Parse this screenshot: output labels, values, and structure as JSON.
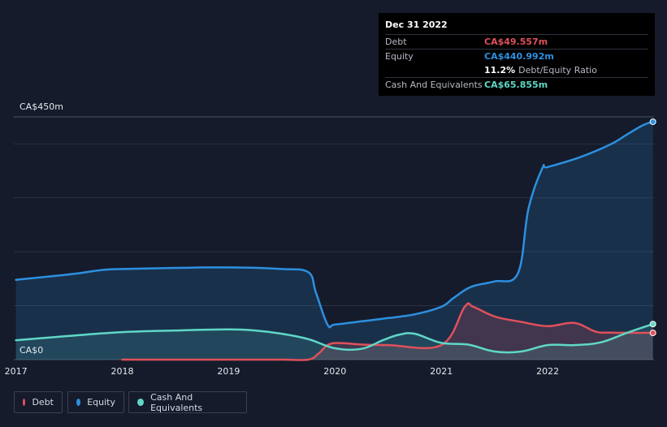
{
  "tooltip": {
    "date": "Dec 31 2022",
    "debt_label": "Debt",
    "debt_value": "CA$49.557m",
    "equity_label": "Equity",
    "equity_value": "CA$440.992m",
    "ratio_value": "11.2%",
    "ratio_label": "Debt/Equity Ratio",
    "cash_label": "Cash And Equivalents",
    "cash_value": "CA$65.855m"
  },
  "legend": {
    "debt": "Debt",
    "equity": "Equity",
    "cash": "Cash And Equivalents"
  },
  "colors": {
    "debt": "#e0505a",
    "equity": "#2c90e0",
    "cash": "#5fd8c6",
    "background": "#151b2b"
  },
  "chart_data": {
    "type": "area",
    "ylabel_top": "CA$450m",
    "ylabel_bottom": "CA$0",
    "ylim": [
      0,
      450
    ],
    "xlim": [
      2016.98,
      2023.0
    ],
    "x_ticks": [
      2017,
      2018,
      2019,
      2020,
      2021,
      2022
    ],
    "x_tick_labels": [
      "2017",
      "2018",
      "2019",
      "2020",
      "2021",
      "2022"
    ],
    "series": [
      {
        "name": "Equity",
        "points": [
          [
            2017.0,
            148
          ],
          [
            2017.5,
            158
          ],
          [
            2017.8,
            166
          ],
          [
            2018.0,
            168
          ],
          [
            2018.5,
            170
          ],
          [
            2019.0,
            171
          ],
          [
            2019.5,
            168
          ],
          [
            2019.75,
            162
          ],
          [
            2019.82,
            125
          ],
          [
            2019.93,
            65
          ],
          [
            2020.0,
            65
          ],
          [
            2020.25,
            71
          ],
          [
            2020.5,
            77
          ],
          [
            2020.75,
            84
          ],
          [
            2021.0,
            98
          ],
          [
            2021.12,
            115
          ],
          [
            2021.28,
            135
          ],
          [
            2021.5,
            145
          ],
          [
            2021.72,
            160
          ],
          [
            2021.82,
            280
          ],
          [
            2021.95,
            355
          ],
          [
            2022.0,
            357
          ],
          [
            2022.3,
            375
          ],
          [
            2022.6,
            400
          ],
          [
            2022.75,
            418
          ],
          [
            2022.9,
            435
          ],
          [
            2022.99,
            441
          ]
        ]
      },
      {
        "name": "Debt",
        "points": [
          [
            2018.0,
            0
          ],
          [
            2018.5,
            0
          ],
          [
            2019.0,
            0
          ],
          [
            2019.5,
            0
          ],
          [
            2019.75,
            0
          ],
          [
            2019.85,
            12
          ],
          [
            2019.97,
            30
          ],
          [
            2020.25,
            28
          ],
          [
            2020.5,
            27
          ],
          [
            2021.0,
            27
          ],
          [
            2021.22,
            98
          ],
          [
            2021.3,
            98
          ],
          [
            2021.5,
            80
          ],
          [
            2021.75,
            70
          ],
          [
            2022.0,
            62
          ],
          [
            2022.25,
            68
          ],
          [
            2022.45,
            52
          ],
          [
            2022.6,
            50
          ],
          [
            2022.99,
            49.6
          ]
        ]
      },
      {
        "name": "Cash And Equivalents",
        "points": [
          [
            2017.0,
            36
          ],
          [
            2017.5,
            44
          ],
          [
            2018.0,
            51
          ],
          [
            2018.5,
            54
          ],
          [
            2019.0,
            56
          ],
          [
            2019.25,
            54
          ],
          [
            2019.5,
            48
          ],
          [
            2019.75,
            38
          ],
          [
            2020.0,
            21
          ],
          [
            2020.25,
            20
          ],
          [
            2020.45,
            36
          ],
          [
            2020.6,
            46
          ],
          [
            2020.75,
            48
          ],
          [
            2021.0,
            31
          ],
          [
            2021.25,
            28
          ],
          [
            2021.5,
            15
          ],
          [
            2021.75,
            15
          ],
          [
            2022.0,
            27
          ],
          [
            2022.25,
            27
          ],
          [
            2022.5,
            32
          ],
          [
            2022.75,
            50
          ],
          [
            2022.99,
            65.9
          ]
        ]
      }
    ]
  }
}
